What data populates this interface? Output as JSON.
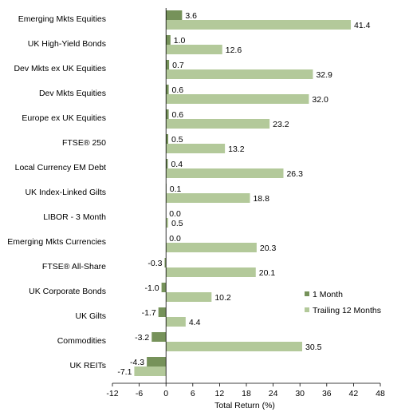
{
  "chart_data": {
    "type": "bar",
    "orientation": "horizontal",
    "categories": [
      "Emerging Mkts Equities",
      "UK High-Yield Bonds",
      "Dev Mkts ex UK Equities",
      "Dev Mkts Equities",
      "Europe ex UK Equities",
      "FTSE® 250",
      "Local Currency EM Debt",
      "UK Index-Linked Gilts",
      "LIBOR - 3 Month",
      "Emerging Mkts Currencies",
      "FTSE® All-Share",
      "UK Corporate Bonds",
      "UK Gilts",
      "Commodities",
      "UK REITs"
    ],
    "series": [
      {
        "name": "1 Month",
        "color": "#76925a",
        "values": [
          3.6,
          1.0,
          0.7,
          0.6,
          0.6,
          0.5,
          0.4,
          0.1,
          0.0,
          0.0,
          -0.3,
          -1.0,
          -1.7,
          -3.2,
          -4.3
        ]
      },
      {
        "name": "Trailing 12 Months",
        "color": "#b3c99a",
        "values": [
          41.4,
          12.6,
          32.9,
          32.0,
          23.2,
          13.2,
          26.3,
          18.8,
          0.5,
          20.3,
          20.1,
          10.2,
          4.4,
          30.5,
          -7.1
        ]
      }
    ],
    "xlabel": "Total Return (%)",
    "xlim": [
      -12,
      48
    ],
    "xticks": [
      -12,
      -6,
      0,
      6,
      12,
      18,
      24,
      30,
      36,
      42,
      48
    ],
    "grid": false,
    "legend_position": "bottom-right"
  }
}
